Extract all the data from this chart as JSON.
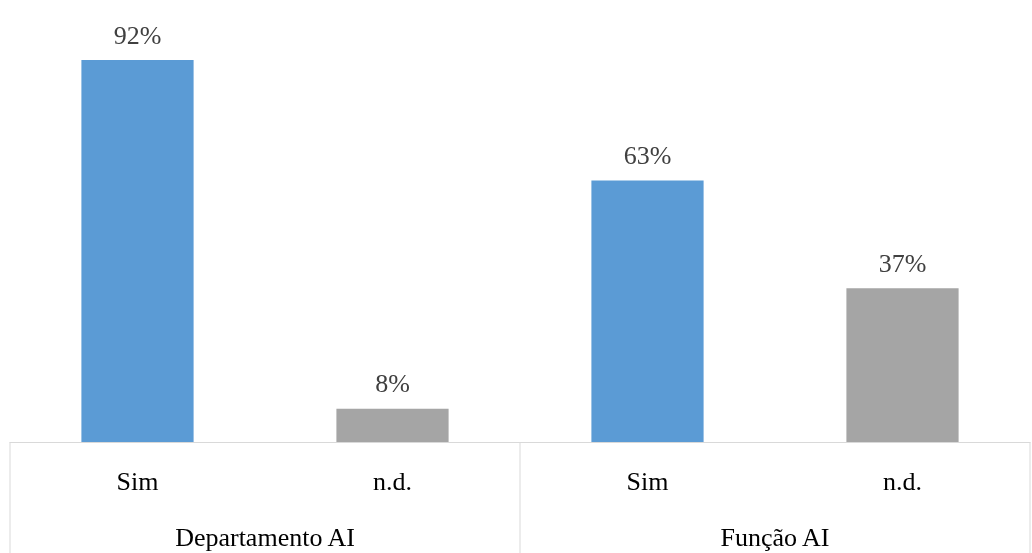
{
  "chart_data": {
    "type": "bar",
    "categories": [
      "Sim",
      "n.d.",
      "Sim",
      "n.d."
    ],
    "values": [
      92,
      8,
      63,
      37
    ],
    "value_labels": [
      "92%",
      "8%",
      "63%",
      "37%"
    ],
    "colors": [
      "#5b9bd5",
      "#a5a5a5",
      "#5b9bd5",
      "#a5a5a5"
    ],
    "annotations": [
      "Departamento AI",
      "Função AI"
    ]
  }
}
